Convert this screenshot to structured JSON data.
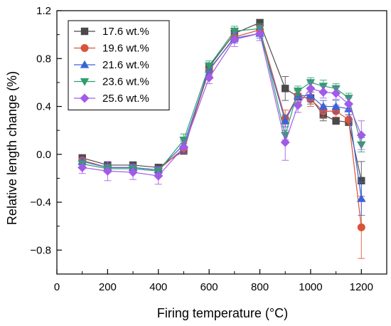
{
  "chart_data": {
    "type": "line",
    "xlabel": "Firing temperature (°C)",
    "ylabel": "Relative length change (%)",
    "xlim": [
      0,
      1300
    ],
    "ylim": [
      -1.0,
      1.2
    ],
    "xticks": [
      0,
      200,
      400,
      600,
      800,
      1000,
      1200
    ],
    "xtick_labels": [
      "0",
      "200",
      "400",
      "600",
      "800",
      "1000",
      "1200"
    ],
    "yticks": [
      -0.8,
      -0.4,
      0.0,
      0.4,
      0.8,
      1.2
    ],
    "ytick_labels": [
      "−0.8",
      "−0.4",
      "0.0",
      "0.4",
      "0.8",
      "1.2"
    ],
    "grid": false,
    "legend_position": "top-left",
    "x": [
      100,
      200,
      300,
      400,
      500,
      600,
      700,
      800,
      900,
      950,
      1000,
      1050,
      1100,
      1150,
      1200
    ],
    "series": [
      {
        "name": "17.6 wt.%",
        "color": "#4a4a4a",
        "marker": "square",
        "values": [
          -0.03,
          -0.09,
          -0.09,
          -0.11,
          0.03,
          0.73,
          1.01,
          1.1,
          0.55,
          0.48,
          0.47,
          0.33,
          0.28,
          0.27,
          -0.22
        ],
        "errors": [
          0.02,
          0.02,
          0.02,
          0.02,
          0.03,
          0.03,
          0.03,
          0.02,
          0.1,
          0.05,
          0.05,
          0.05,
          0.03,
          0.03,
          0.16
        ]
      },
      {
        "name": "19.6 wt.%",
        "color": "#d9533b",
        "marker": "circle",
        "values": [
          -0.05,
          -0.11,
          -0.11,
          -0.13,
          0.05,
          0.7,
          0.98,
          1.04,
          0.3,
          0.49,
          0.46,
          0.36,
          0.36,
          0.29,
          -0.61
        ],
        "errors": [
          0.02,
          0.03,
          0.03,
          0.03,
          0.04,
          0.04,
          0.04,
          0.04,
          0.07,
          0.06,
          0.06,
          0.05,
          0.05,
          0.04,
          0.26
        ]
      },
      {
        "name": "21.6 wt.%",
        "color": "#3a63d8",
        "marker": "triangle-up",
        "values": [
          -0.06,
          -0.11,
          -0.11,
          -0.13,
          0.08,
          0.71,
          0.97,
          1.01,
          0.28,
          0.49,
          0.49,
          0.4,
          0.4,
          0.38,
          -0.37
        ],
        "errors": [
          0.03,
          0.03,
          0.03,
          0.03,
          0.04,
          0.04,
          0.04,
          0.04,
          0.05,
          0.05,
          0.05,
          0.05,
          0.05,
          0.05,
          0.14
        ]
      },
      {
        "name": "23.6 wt.%",
        "color": "#2f9e6e",
        "marker": "triangle-down",
        "values": [
          -0.08,
          -0.12,
          -0.12,
          -0.14,
          0.12,
          0.74,
          1.03,
          1.05,
          0.16,
          0.53,
          0.6,
          0.57,
          0.55,
          0.47,
          0.08
        ],
        "errors": [
          0.03,
          0.03,
          0.03,
          0.03,
          0.05,
          0.04,
          0.04,
          0.04,
          0.04,
          0.04,
          0.04,
          0.05,
          0.04,
          0.04,
          0.06
        ]
      },
      {
        "name": "25.6 wt.%",
        "color": "#a25ae8",
        "marker": "diamond",
        "values": [
          -0.11,
          -0.14,
          -0.15,
          -0.18,
          0.06,
          0.64,
          0.96,
          1.01,
          0.1,
          0.41,
          0.55,
          0.52,
          0.51,
          0.42,
          0.16
        ],
        "errors": [
          0.05,
          0.08,
          0.06,
          0.07,
          0.05,
          0.05,
          0.06,
          0.06,
          0.15,
          0.06,
          0.05,
          0.05,
          0.05,
          0.05,
          0.12
        ]
      }
    ]
  }
}
